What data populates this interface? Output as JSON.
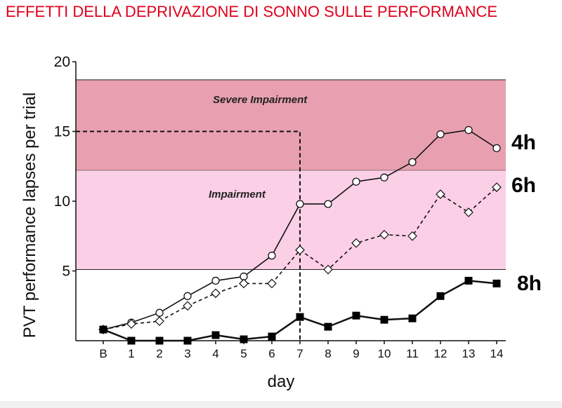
{
  "page": {
    "title": "EFFETTI DELLA DEPRIVAZIONE DI SONNO SULLE PERFORMANCE"
  },
  "colors": {
    "title": "#e0001b",
    "severe_zone": "#e8a0b0",
    "impairment_zone": "#fbcfe6",
    "footer": "#f0f0f0"
  },
  "chart_data": {
    "type": "line",
    "title": "",
    "xlabel": "day",
    "ylabel": "PVT performance lapses per trial",
    "categories": [
      "B",
      "1",
      "2",
      "3",
      "4",
      "5",
      "6",
      "7",
      "8",
      "9",
      "10",
      "11",
      "12",
      "13",
      "14"
    ],
    "yticks": [
      5,
      10,
      15,
      20
    ],
    "ylim": [
      0,
      20
    ],
    "grid": false,
    "zones": [
      {
        "label": "Severe Impairment",
        "from": 12.2,
        "to": 18.7
      },
      {
        "label": "Impairment",
        "from": 5.1,
        "to": 12.2
      }
    ],
    "reference": {
      "x": "7",
      "y": 15
    },
    "series": [
      {
        "name": "4h",
        "marker": "open-circle",
        "line": "solid",
        "values": [
          0.8,
          1.3,
          2.0,
          3.2,
          4.3,
          4.6,
          6.1,
          9.8,
          9.8,
          11.4,
          11.7,
          12.8,
          14.8,
          15.1,
          13.8
        ]
      },
      {
        "name": "6h",
        "marker": "open-diamond",
        "line": "dashed",
        "values": [
          0.8,
          1.2,
          1.4,
          2.5,
          3.4,
          4.1,
          4.1,
          6.5,
          5.1,
          7.0,
          7.6,
          7.5,
          10.5,
          9.2,
          11.0
        ]
      },
      {
        "name": "8h",
        "marker": "filled-square",
        "line": "solid",
        "values": [
          0.8,
          0.0,
          0.0,
          0.0,
          0.4,
          0.1,
          0.3,
          1.7,
          1.0,
          1.8,
          1.5,
          1.6,
          3.2,
          4.3,
          4.1
        ]
      }
    ]
  }
}
